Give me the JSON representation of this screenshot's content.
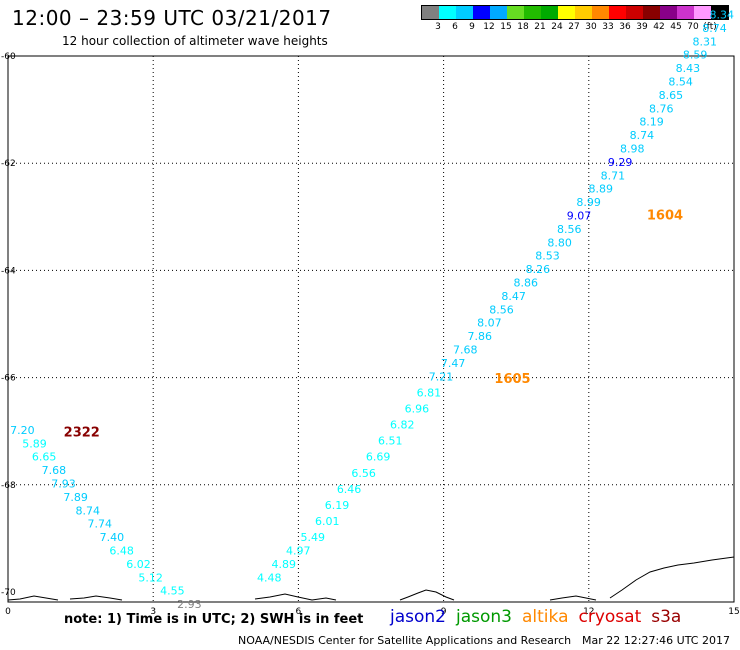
{
  "header": {
    "title": "12:00 – 23:59 UTC 03/21/2017",
    "subtitle": "12 hour collection of altimeter wave heights"
  },
  "legend": {
    "colors": [
      "#808080",
      "#00ffff",
      "#00ccff",
      "#0000ff",
      "#00aaff",
      "#66dd22",
      "#22bb00",
      "#00aa00",
      "#ffff00",
      "#ffcc00",
      "#ff8800",
      "#ff0000",
      "#cc0000",
      "#880000",
      "#880088",
      "#cc33cc",
      "#ff99ff",
      "#000000"
    ],
    "ticks": [
      "3",
      "6",
      "9",
      "12",
      "15",
      "18",
      "21",
      "24",
      "27",
      "30",
      "33",
      "36",
      "39",
      "42",
      "45",
      "70",
      "(ft)"
    ]
  },
  "map": {
    "x_ticks": [
      "0",
      "3",
      "6",
      "9",
      "12",
      "15"
    ],
    "y_ticks": [
      "-60",
      "-62",
      "-64",
      "-66",
      "-68",
      "-70"
    ]
  },
  "chart_data": {
    "type": "scatter",
    "title": "12:00 – 23:59 UTC 03/21/2017",
    "subtitle": "12 hour collection of altimeter wave heights",
    "xlim": [
      0,
      15
    ],
    "ylim": [
      -70,
      -60
    ],
    "x_ticks": [
      "0",
      "3",
      "6",
      "9",
      "12",
      "15"
    ],
    "y_ticks": [
      "-60",
      "-62",
      "-64",
      "-66",
      "-68",
      "-70"
    ],
    "series": [
      {
        "track": "2322",
        "points": [
          {
            "x": 0.55,
            "y": -67.05,
            "label": "7.20",
            "color": "#00ccff"
          },
          {
            "x": 0.8,
            "y": -67.3,
            "label": "5.89",
            "color": "#00ffff"
          },
          {
            "x": 1.0,
            "y": -67.55,
            "label": "6.65",
            "color": "#00ffff"
          },
          {
            "x": 1.2,
            "y": -67.8,
            "label": "7.68",
            "color": "#00ccff"
          },
          {
            "x": 1.4,
            "y": -68.05,
            "label": "7.93",
            "color": "#00ccff"
          },
          {
            "x": 1.65,
            "y": -68.3,
            "label": "7.89",
            "color": "#00ccff"
          },
          {
            "x": 1.9,
            "y": -68.55,
            "label": "8.74",
            "color": "#00ccff"
          },
          {
            "x": 2.15,
            "y": -68.8,
            "label": "7.74",
            "color": "#00ccff"
          },
          {
            "x": 2.4,
            "y": -69.05,
            "label": "7.40",
            "color": "#00ccff"
          },
          {
            "x": 2.6,
            "y": -69.3,
            "label": "6.48",
            "color": "#00ffff"
          },
          {
            "x": 2.95,
            "y": -69.55,
            "label": "6.02",
            "color": "#00ffff"
          },
          {
            "x": 3.2,
            "y": -69.8,
            "label": "5.12",
            "color": "#00ffff"
          },
          {
            "x": 3.65,
            "y": -70.05,
            "label": "4.55",
            "color": "#00ffff"
          },
          {
            "x": 4.0,
            "y": -70.3,
            "label": "2.93",
            "color": "#808080"
          }
        ]
      },
      {
        "track": "1605",
        "points": [
          {
            "x": 5.65,
            "y": -69.8,
            "label": "4.48",
            "color": "#00ffff"
          },
          {
            "x": 5.95,
            "y": -69.55,
            "label": "4.89",
            "color": "#00ffff"
          },
          {
            "x": 6.25,
            "y": -69.3,
            "label": "4.97",
            "color": "#00ffff"
          },
          {
            "x": 6.55,
            "y": -69.05,
            "label": "5.49",
            "color": "#00ffff"
          },
          {
            "x": 6.85,
            "y": -68.75,
            "label": "6.01",
            "color": "#00ffff"
          },
          {
            "x": 7.05,
            "y": -68.45,
            "label": "6.19",
            "color": "#00ffff"
          },
          {
            "x": 7.3,
            "y": -68.15,
            "label": "6.46",
            "color": "#00ffff"
          },
          {
            "x": 7.6,
            "y": -67.85,
            "label": "6.56",
            "color": "#00ffff"
          },
          {
            "x": 7.9,
            "y": -67.55,
            "label": "6.69",
            "color": "#00ffff"
          },
          {
            "x": 8.15,
            "y": -67.25,
            "label": "6.51",
            "color": "#00ffff"
          },
          {
            "x": 8.4,
            "y": -66.95,
            "label": "6.82",
            "color": "#00ffff"
          },
          {
            "x": 8.7,
            "y": -66.65,
            "label": "6.96",
            "color": "#00ffff"
          },
          {
            "x": 8.95,
            "y": -66.35,
            "label": "6.81",
            "color": "#00ffff"
          },
          {
            "x": 9.2,
            "y": -66.05,
            "label": "7.21",
            "color": "#00ccff"
          },
          {
            "x": 9.45,
            "y": -65.8,
            "label": "7.47",
            "color": "#00ccff"
          },
          {
            "x": 9.7,
            "y": -65.55,
            "label": "7.68",
            "color": "#00ccff"
          },
          {
            "x": 10.0,
            "y": -65.3,
            "label": "7.86",
            "color": "#00ccff"
          },
          {
            "x": 10.2,
            "y": -65.05,
            "label": "8.07",
            "color": "#00ccff"
          },
          {
            "x": 10.45,
            "y": -64.8,
            "label": "8.56",
            "color": "#00ccff"
          },
          {
            "x": 10.7,
            "y": -64.55,
            "label": "8.47",
            "color": "#00ccff"
          },
          {
            "x": 10.95,
            "y": -64.3,
            "label": "8.86",
            "color": "#00ccff"
          },
          {
            "x": 11.2,
            "y": -64.05,
            "label": "8.26",
            "color": "#00ccff"
          },
          {
            "x": 11.4,
            "y": -63.8,
            "label": "8.53",
            "color": "#00ccff"
          },
          {
            "x": 11.65,
            "y": -63.55,
            "label": "8.80",
            "color": "#00ccff"
          }
        ]
      },
      {
        "track": "1604",
        "points": [
          {
            "x": 11.85,
            "y": -63.3,
            "label": "8.56",
            "color": "#00ccff"
          },
          {
            "x": 12.05,
            "y": -63.05,
            "label": "9.07",
            "color": "#0000ff"
          },
          {
            "x": 12.25,
            "y": -62.8,
            "label": "8.99",
            "color": "#00ccff"
          },
          {
            "x": 12.5,
            "y": -62.55,
            "label": "8.89",
            "color": "#00ccff"
          },
          {
            "x": 12.75,
            "y": -62.3,
            "label": "8.71",
            "color": "#00ccff"
          },
          {
            "x": 12.9,
            "y": -62.05,
            "label": "9.29",
            "color": "#0000ff"
          },
          {
            "x": 13.15,
            "y": -61.8,
            "label": "8.98",
            "color": "#00ccff"
          },
          {
            "x": 13.35,
            "y": -61.55,
            "label": "8.74",
            "color": "#00ccff"
          },
          {
            "x": 13.55,
            "y": -61.3,
            "label": "8.19",
            "color": "#00ccff"
          },
          {
            "x": 13.75,
            "y": -61.05,
            "label": "8.76",
            "color": "#00ccff"
          },
          {
            "x": 13.95,
            "y": -60.8,
            "label": "8.65",
            "color": "#00ccff"
          },
          {
            "x": 14.15,
            "y": -60.55,
            "label": "8.54",
            "color": "#00ccff"
          },
          {
            "x": 14.3,
            "y": -60.3,
            "label": "8.43",
            "color": "#00ccff"
          },
          {
            "x": 14.45,
            "y": -60.05,
            "label": "8.59",
            "color": "#00ccff"
          },
          {
            "x": 14.65,
            "y": -59.8,
            "label": "8.31",
            "color": "#00ccff"
          },
          {
            "x": 14.85,
            "y": -59.55,
            "label": "8.74",
            "color": "#00ccff"
          },
          {
            "x": 15.0,
            "y": -59.3,
            "label": "8.34",
            "color": "#00ccff"
          }
        ]
      }
    ],
    "track_labels": [
      {
        "x": 1.15,
        "y": -67.1,
        "label": "2322",
        "color": "#880000"
      },
      {
        "x": 10.05,
        "y": -66.1,
        "label": "1605",
        "color": "#ff8800"
      },
      {
        "x": 13.2,
        "y": -63.05,
        "label": "1604",
        "color": "#ff8800"
      }
    ]
  },
  "footer": {
    "note": "note: 1) Time is in UTC; 2) SWH is in feet",
    "satellites": [
      {
        "name": "jason2",
        "color": "#0000cc"
      },
      {
        "name": "jason3",
        "color": "#009900"
      },
      {
        "name": "altika",
        "color": "#ff8800"
      },
      {
        "name": "cryosat",
        "color": "#dd0000"
      },
      {
        "name": "s3a",
        "color": "#990000"
      }
    ],
    "credit": "NOAA/NESDIS Center for Satellite Applications and Research",
    "timestamp": "Mar 22 12:27:46 UTC 2017"
  }
}
